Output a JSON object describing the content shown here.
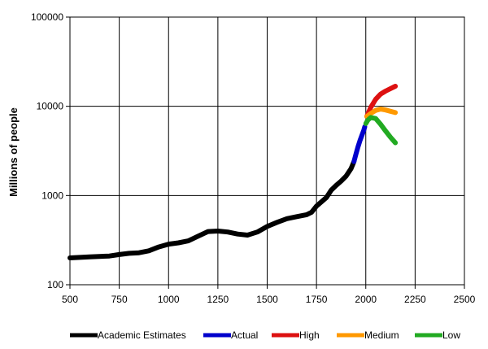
{
  "chart_data": {
    "type": "line",
    "title": "",
    "xlabel": "",
    "ylabel": "Millions of people",
    "xlim": [
      500,
      2500
    ],
    "ylim": [
      100,
      100000
    ],
    "yscale": "log",
    "grid": true,
    "legend_position": "bottom",
    "x_ticks": [
      "500",
      "750",
      "1000",
      "1250",
      "1500",
      "1750",
      "2000",
      "2250",
      "2500"
    ],
    "y_ticks": [
      "100",
      "1000",
      "10000",
      "100000"
    ],
    "series": [
      {
        "name": "Academic Estimates",
        "color": "#000000",
        "points": [
          [
            500,
            200
          ],
          [
            600,
            205
          ],
          [
            700,
            210
          ],
          [
            750,
            218
          ],
          [
            800,
            225
          ],
          [
            850,
            228
          ],
          [
            900,
            240
          ],
          [
            950,
            265
          ],
          [
            1000,
            285
          ],
          [
            1050,
            295
          ],
          [
            1100,
            310
          ],
          [
            1150,
            350
          ],
          [
            1200,
            395
          ],
          [
            1250,
            400
          ],
          [
            1300,
            390
          ],
          [
            1350,
            370
          ],
          [
            1400,
            360
          ],
          [
            1450,
            390
          ],
          [
            1500,
            450
          ],
          [
            1550,
            500
          ],
          [
            1600,
            550
          ],
          [
            1650,
            580
          ],
          [
            1700,
            610
          ],
          [
            1725,
            650
          ],
          [
            1750,
            760
          ],
          [
            1800,
            950
          ],
          [
            1825,
            1150
          ],
          [
            1850,
            1300
          ],
          [
            1875,
            1450
          ],
          [
            1900,
            1650
          ],
          [
            1925,
            2000
          ],
          [
            1940,
            2400
          ]
        ]
      },
      {
        "name": "Actual",
        "color": "#0000cc",
        "points": [
          [
            1940,
            2400
          ],
          [
            1950,
            2900
          ],
          [
            1960,
            3500
          ],
          [
            1970,
            4100
          ],
          [
            1980,
            4700
          ],
          [
            1990,
            5400
          ],
          [
            1995,
            5900
          ]
        ]
      },
      {
        "name": "High",
        "color": "#dd1111",
        "points": [
          [
            2005,
            7700
          ],
          [
            2025,
            9700
          ],
          [
            2050,
            12000
          ],
          [
            2075,
            13700
          ],
          [
            2100,
            14800
          ],
          [
            2125,
            15800
          ],
          [
            2150,
            16800
          ]
        ]
      },
      {
        "name": "Medium",
        "color": "#ff9900",
        "points": [
          [
            2005,
            7700
          ],
          [
            2025,
            8300
          ],
          [
            2050,
            9000
          ],
          [
            2075,
            9300
          ],
          [
            2100,
            9100
          ],
          [
            2125,
            8800
          ],
          [
            2150,
            8500
          ]
        ]
      },
      {
        "name": "Low",
        "color": "#22aa22",
        "points": [
          [
            2000,
            6400
          ],
          [
            2010,
            7000
          ],
          [
            2025,
            7500
          ],
          [
            2050,
            7300
          ],
          [
            2075,
            6300
          ],
          [
            2100,
            5300
          ],
          [
            2125,
            4500
          ],
          [
            2150,
            3900
          ]
        ]
      }
    ]
  }
}
